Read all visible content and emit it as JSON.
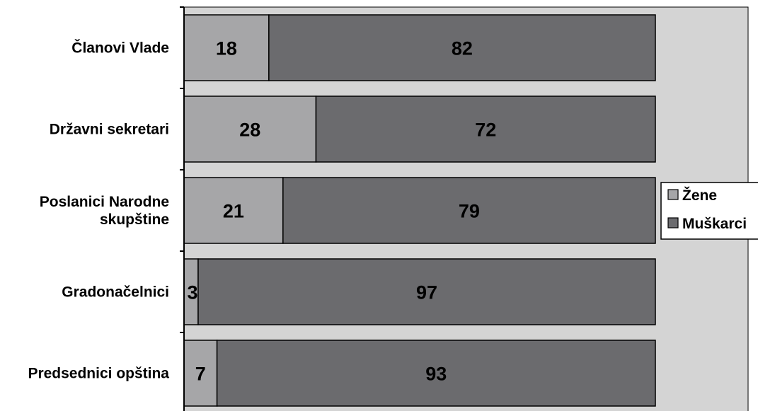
{
  "chart_data": {
    "type": "bar",
    "orientation": "horizontal",
    "stacked": true,
    "title": "",
    "xlabel": "",
    "ylabel": "",
    "xlim": [
      0,
      100
    ],
    "categories": [
      [
        "Članovi Vlade"
      ],
      [
        "Državni sekretari"
      ],
      [
        "Poslanici Narodne",
        "skupštine"
      ],
      [
        "Gradonačelnici"
      ],
      [
        "Predsednici opština"
      ]
    ],
    "series": [
      {
        "name": "Žene",
        "color": "#a6a6a8",
        "values": [
          18,
          28,
          21,
          3,
          7
        ]
      },
      {
        "name": "Muškarci",
        "color": "#6b6b6e",
        "values": [
          82,
          72,
          79,
          97,
          93
        ]
      }
    ],
    "plot_background": "#d4d4d4",
    "legend_position": "right",
    "grid": false
  }
}
